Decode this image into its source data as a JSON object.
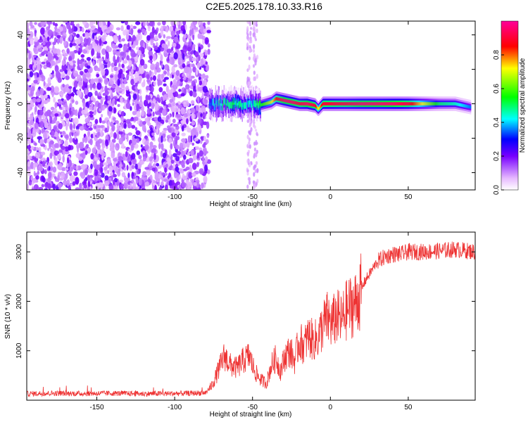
{
  "title": "C2E5.2025.178.10.33.R16",
  "chart_data": [
    {
      "type": "heatmap",
      "xlabel": "Height of straight line (km)",
      "ylabel": "Frequency (Hz)",
      "xlim": [
        -195,
        93
      ],
      "ylim": [
        -50,
        48
      ],
      "xticks": [
        -150,
        -100,
        -50,
        0,
        50
      ],
      "yticks": [
        -40,
        -20,
        0,
        20,
        40
      ],
      "colorbar": {
        "label": "Normalized spectral amplitude",
        "range": [
          0,
          1
        ],
        "ticks": [
          0.0,
          0.2,
          0.4,
          0.6,
          0.8
        ]
      },
      "noise_region_x": [
        -195,
        -78
      ],
      "signal_track": {
        "x": [
          -78,
          -70,
          -60,
          -50,
          -46,
          -42,
          -38,
          -35,
          -30,
          -25,
          -20,
          -15,
          -10,
          -8,
          -5,
          0,
          10,
          20,
          30,
          40,
          50,
          60,
          70,
          80,
          90
        ],
        "freq_hz": [
          0,
          0,
          0,
          0,
          -1,
          0,
          1,
          3,
          2,
          1,
          0,
          0,
          -1,
          -3,
          0,
          0,
          0,
          0,
          0,
          0,
          0,
          0,
          0,
          0,
          -2
        ],
        "amplitude": [
          0.35,
          0.45,
          0.45,
          0.4,
          0.5,
          0.6,
          0.7,
          0.85,
          0.95,
          0.95,
          0.9,
          0.95,
          0.9,
          0.7,
          0.9,
          0.9,
          0.9,
          0.95,
          0.95,
          0.95,
          0.9,
          0.7,
          0.5,
          0.45,
          0.35
        ]
      }
    },
    {
      "type": "line",
      "xlabel": "Height of straight line (km)",
      "ylabel": "SNR (10 * v/v)",
      "xlim": [
        -195,
        93
      ],
      "ylim": [
        0,
        3400
      ],
      "xticks": [
        -150,
        -100,
        -50,
        0,
        50
      ],
      "yticks": [
        1000,
        2000,
        3000
      ],
      "color": "#ee3333",
      "series": [
        {
          "x": [
            -195,
            -180,
            -160,
            -140,
            -120,
            -100,
            -90,
            -80,
            -76,
            -72,
            -68,
            -64,
            -60,
            -56,
            -52,
            -50,
            -47,
            -44,
            -41,
            -38,
            -35,
            -32,
            -29,
            -26,
            -23,
            -20,
            -17,
            -14,
            -11,
            -8,
            -5,
            -2,
            1,
            4,
            7,
            10,
            13,
            16,
            19,
            22,
            25,
            30,
            35,
            40,
            45,
            50,
            60,
            70,
            80,
            93
          ],
          "y": [
            130,
            140,
            135,
            140,
            130,
            135,
            140,
            150,
            300,
            600,
            900,
            700,
            650,
            800,
            900,
            700,
            500,
            400,
            350,
            700,
            850,
            600,
            900,
            1000,
            800,
            1200,
            1100,
            1300,
            1200,
            1250,
            1500,
            1650,
            1550,
            1700,
            1600,
            1800,
            1900,
            1950,
            2150,
            2400,
            2550,
            2800,
            2900,
            2950,
            2950,
            3000,
            3000,
            3020,
            3050,
            3000
          ]
        }
      ]
    }
  ]
}
